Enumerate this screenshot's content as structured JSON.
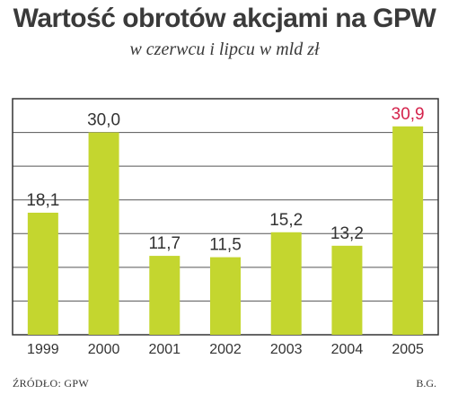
{
  "header": {
    "title": "Wartość obrotów akcjami na GPW",
    "subtitle": "w czerwcu i lipcu w mld zł"
  },
  "footer": {
    "source": "ŹRÓDŁO: GPW",
    "credit": "B.G."
  },
  "colors": {
    "bar": "#c4d62f",
    "label": "#333333",
    "highlight_label": "#d4224b",
    "grid": "#555555"
  },
  "chart_data": {
    "type": "bar",
    "title": "Wartość obrotów akcjami na GPW",
    "subtitle": "w czerwcu i lipcu w mld zł",
    "categories": [
      "1999",
      "2000",
      "2001",
      "2002",
      "2003",
      "2004",
      "2005"
    ],
    "values": [
      18.1,
      30.0,
      11.7,
      11.5,
      15.2,
      13.2,
      30.9
    ],
    "value_labels": [
      "18,1",
      "30,0",
      "11,7",
      "11,5",
      "15,2",
      "13,2",
      "30,9"
    ],
    "highlight_index": 6,
    "ylim": [
      0,
      35
    ],
    "grid": true,
    "grid_step": 5,
    "xlabel": "",
    "ylabel": ""
  }
}
